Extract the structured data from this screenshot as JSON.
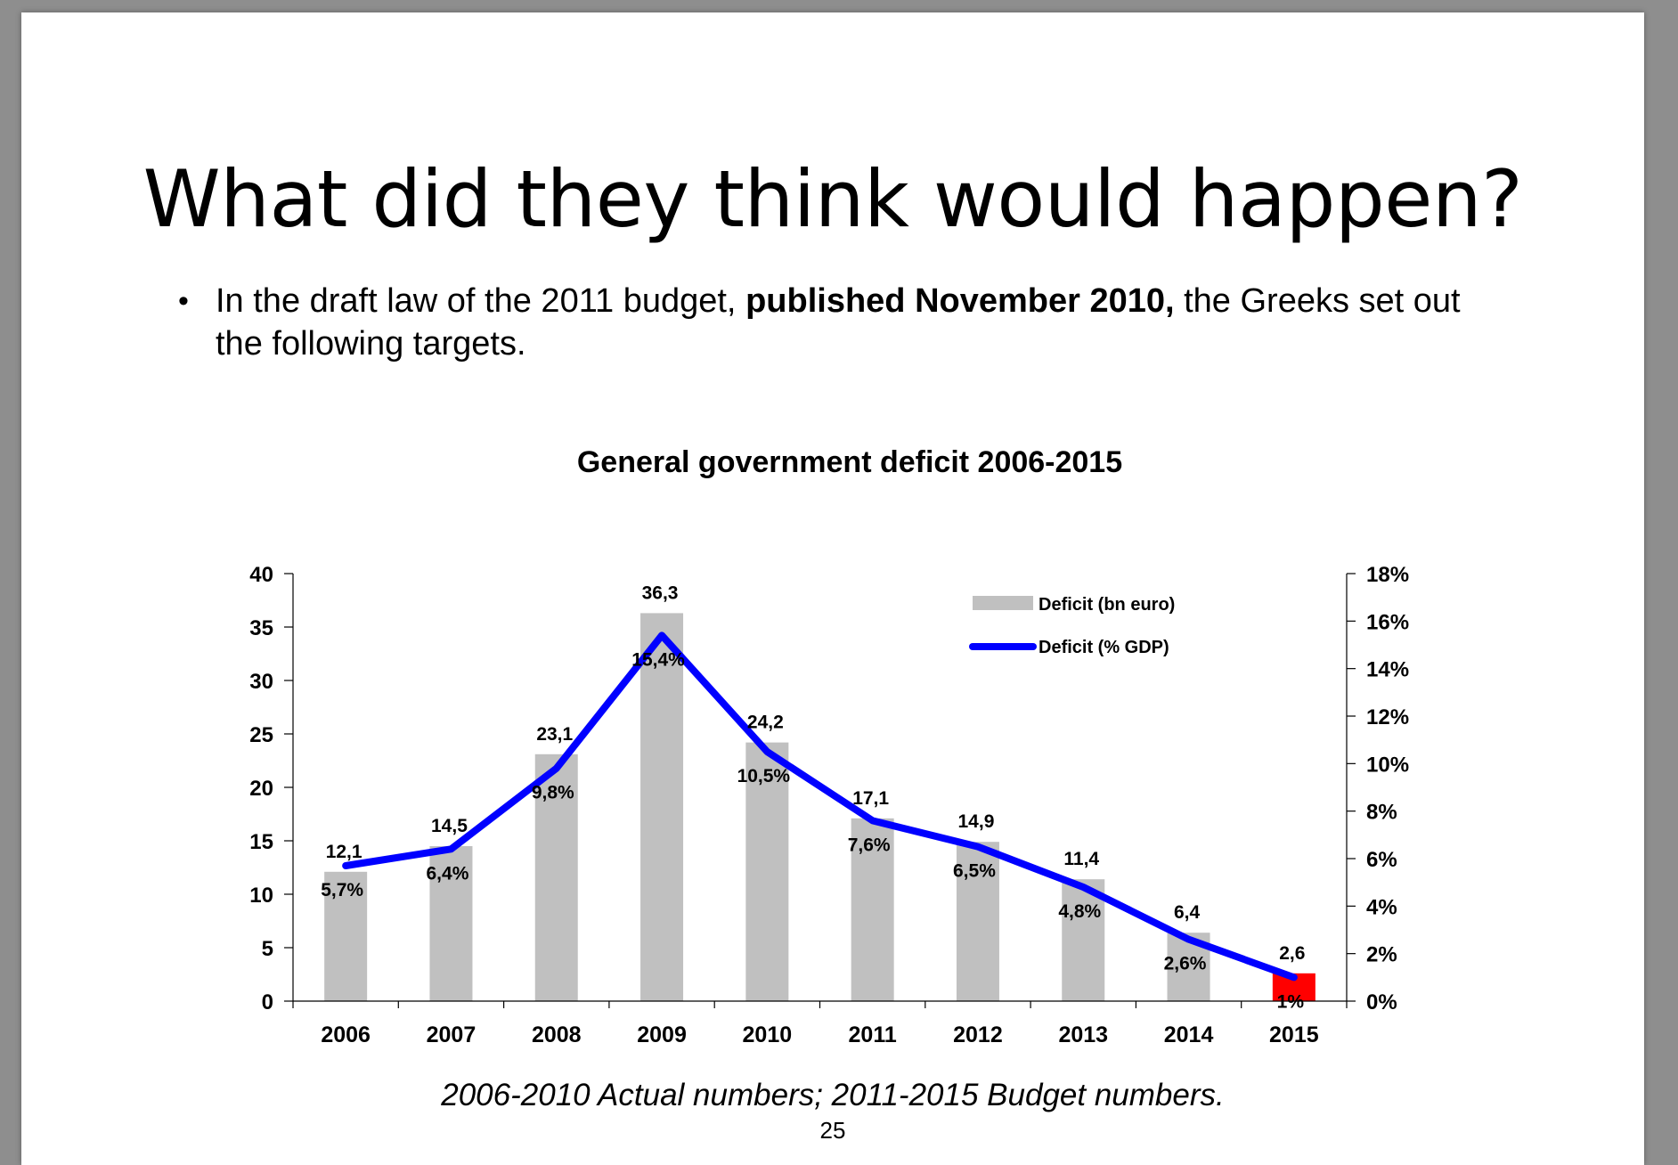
{
  "slide": {
    "title": "What did they think would happen?",
    "bullet": {
      "text_before": "In the draft law of the 2011 budget, ",
      "text_bold": "published November 2010,",
      "text_after": " the Greeks set out the following targets."
    },
    "caption": "2006-2010 Actual numbers; 2011-2015 Budget numbers.",
    "page_number": "25"
  },
  "chart_data": {
    "type": "bar",
    "title": "General government deficit 2006-2015",
    "categories": [
      "2006",
      "2007",
      "2008",
      "2009",
      "2010",
      "2011",
      "2012",
      "2013",
      "2014",
      "2015"
    ],
    "series": [
      {
        "name": "Deficit (bn euro)",
        "type": "bar",
        "axis": "left",
        "values": [
          12.1,
          14.5,
          23.1,
          36.3,
          24.2,
          17.1,
          14.9,
          11.4,
          6.4,
          2.6
        ],
        "labels": [
          "12,1",
          "14,5",
          "23,1",
          "36,3",
          "24,2",
          "17,1",
          "14,9",
          "11,4",
          "6,4",
          "2,6"
        ],
        "color": "#c0c0c0",
        "highlight": {
          "index": 9,
          "color": "#ff0000"
        }
      },
      {
        "name": "Deficit (% GDP)",
        "type": "line",
        "axis": "right",
        "values": [
          5.7,
          6.4,
          9.8,
          15.4,
          10.5,
          7.6,
          6.5,
          4.8,
          2.6,
          1.0
        ],
        "labels": [
          "5,7%",
          "6,4%",
          "9,8%",
          "15,4%",
          "10,5%",
          "7,6%",
          "6,5%",
          "4,8%",
          "2,6%",
          "1%"
        ],
        "color": "#0000ff"
      }
    ],
    "left_axis": {
      "ylim": [
        0,
        40
      ],
      "ticks": [
        0,
        5,
        10,
        15,
        20,
        25,
        30,
        35,
        40
      ],
      "tick_labels": [
        "0",
        "5",
        "10",
        "15",
        "20",
        "25",
        "30",
        "35",
        "40"
      ]
    },
    "right_axis": {
      "ylim": [
        0,
        18
      ],
      "ticks": [
        0,
        2,
        4,
        6,
        8,
        10,
        12,
        14,
        16,
        18
      ],
      "tick_labels": [
        "0%",
        "2%",
        "4%",
        "6%",
        "8%",
        "10%",
        "12%",
        "14%",
        "16%",
        "18%"
      ]
    },
    "legend": "top-right",
    "grid": false
  }
}
